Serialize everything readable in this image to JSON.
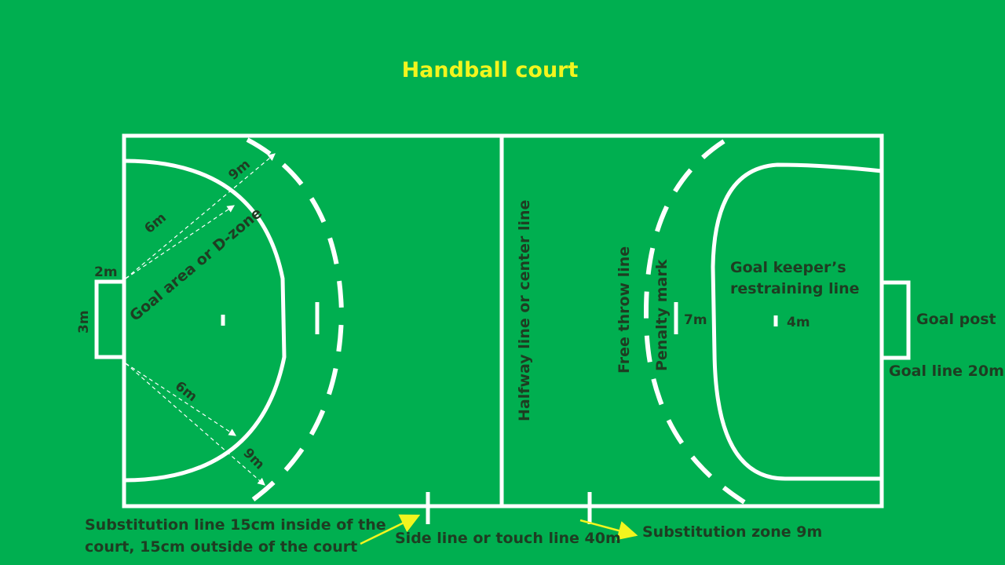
{
  "title": "Handball court",
  "labels": {
    "two_m": "2m",
    "three_m": "3m",
    "six_m_top": "6m",
    "nine_m_top": "9m",
    "six_m_bottom": "6m",
    "nine_m_bottom": "9m",
    "goal_area": "Goal area or D-zone",
    "halfway_line": "Halfway line or center line",
    "free_throw_line": "Free throw line",
    "penalty_mark": "Penalty mark",
    "seven_m": "7m",
    "four_m": "4m",
    "gk_line_1": "Goal keeper’s",
    "gk_line_2": "restraining line",
    "goal_post": "Goal post",
    "goal_line": "Goal line 20m",
    "sub_line_1": "Substitution line 15cm inside of the",
    "sub_line_2": "court, 15cm outside of the court",
    "side_line": "Side line or touch line 40m",
    "sub_zone": "Substitution zone 9m"
  },
  "colors": {
    "background": "#00AF50",
    "lines": "#FFFFFF",
    "text": "#1E3D22",
    "title": "#F2F51E",
    "arrow": "#F2F51E"
  }
}
